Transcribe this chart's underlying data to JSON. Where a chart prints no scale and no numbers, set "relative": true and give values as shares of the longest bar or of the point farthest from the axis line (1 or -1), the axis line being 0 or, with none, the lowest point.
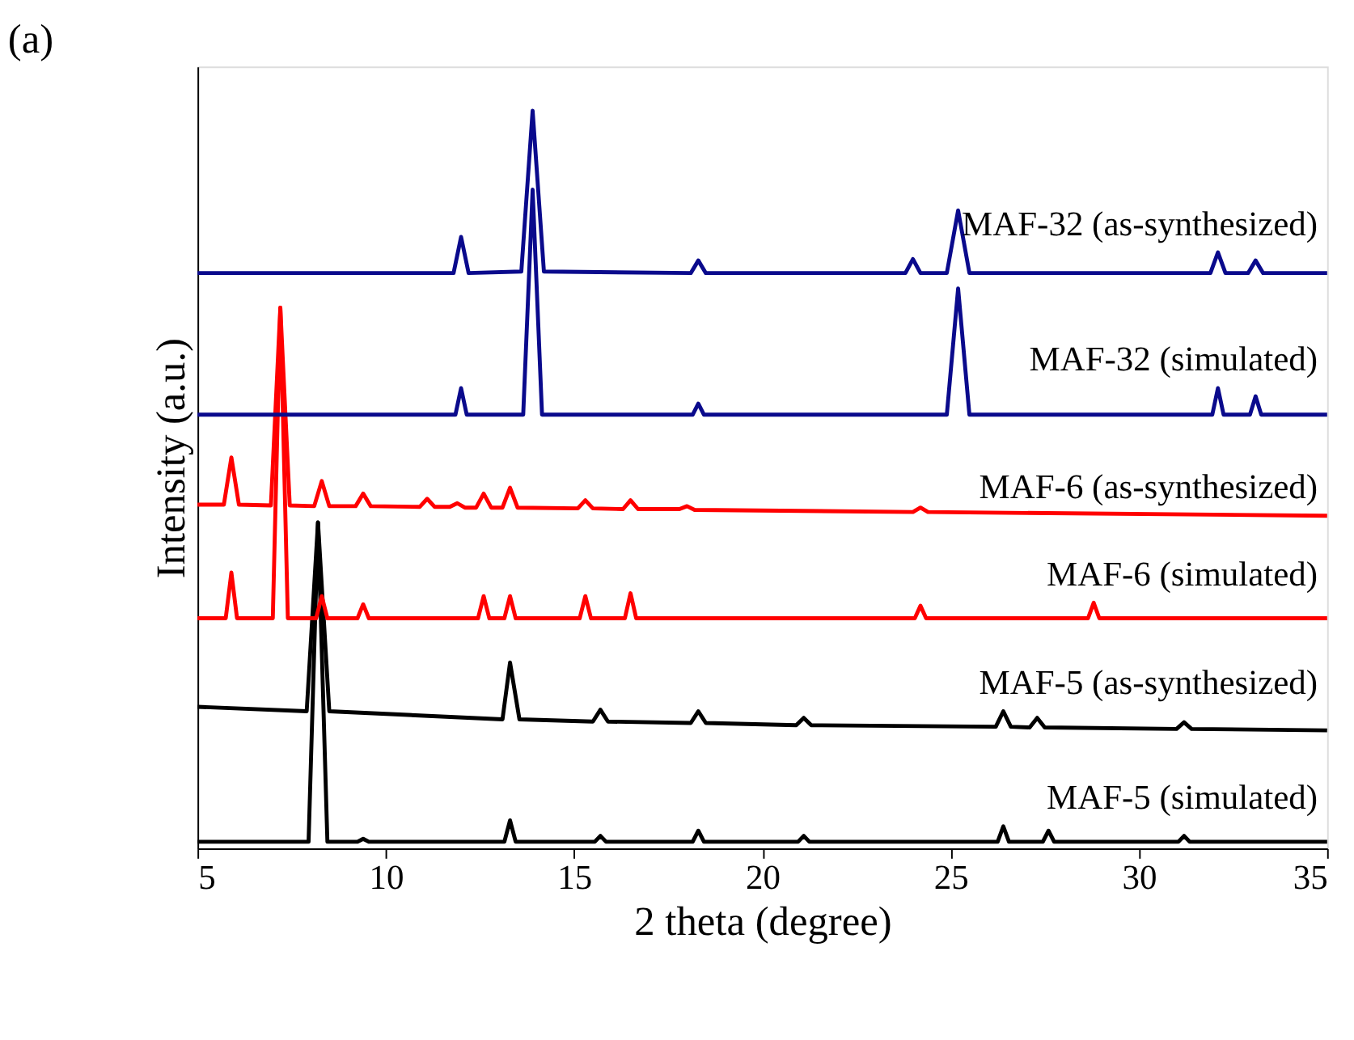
{
  "chart_data": {
    "type": "line",
    "relative": true,
    "xlabel": "2 theta (degree)",
    "ylabel": "Intensity (a.u.)",
    "annotations": [
      "(a)"
    ],
    "xlim": [
      5,
      35
    ],
    "xticks": [
      5,
      10,
      15,
      20,
      25,
      30,
      35
    ],
    "grid": false,
    "marker": "none",
    "line_style": "solid",
    "series": [
      {
        "name": "MAF-5 (simulated)",
        "color": "#000000",
        "x": [
          5,
          7.95,
          8.2,
          8.45,
          9.25,
          9.4,
          9.55,
          13.15,
          13.3,
          13.45,
          15.55,
          15.7,
          15.85,
          18.15,
          18.3,
          18.45,
          20.95,
          21.1,
          21.25,
          26.25,
          26.4,
          26.55,
          27.45,
          27.6,
          27.75,
          31.05,
          31.2,
          31.35,
          35
        ],
        "values": [
          0.009,
          0.009,
          0.442,
          0.009,
          0.009,
          0.013,
          0.009,
          0.009,
          0.038,
          0.009,
          0.009,
          0.017,
          0.009,
          0.009,
          0.024,
          0.009,
          0.009,
          0.017,
          0.009,
          0.009,
          0.03,
          0.009,
          0.009,
          0.024,
          0.009,
          0.009,
          0.017,
          0.009,
          0.009
        ]
      },
      {
        "name": "MAF-5 (as-synthesized)",
        "color": "#000000",
        "x": [
          5,
          7.9,
          8.2,
          8.5,
          13.1,
          13.3,
          13.55,
          15.5,
          15.7,
          15.9,
          18.1,
          18.3,
          18.5,
          20.9,
          21.1,
          21.3,
          26.2,
          26.4,
          26.6,
          27.1,
          27.3,
          27.5,
          31,
          31.2,
          31.4,
          35
        ],
        "values": [
          0.192,
          0.186,
          0.442,
          0.186,
          0.175,
          0.252,
          0.175,
          0.172,
          0.188,
          0.172,
          0.17,
          0.186,
          0.17,
          0.167,
          0.177,
          0.167,
          0.165,
          0.186,
          0.165,
          0.164,
          0.177,
          0.164,
          0.162,
          0.171,
          0.162,
          0.16
        ]
      },
      {
        "name": "MAF-6 (simulated)",
        "color": "#ff0000",
        "x": [
          5,
          5.75,
          5.9,
          6.05,
          7.0,
          7.2,
          7.4,
          8.15,
          8.3,
          8.45,
          9.25,
          9.4,
          9.55,
          12.45,
          12.6,
          12.75,
          13.15,
          13.3,
          13.45,
          15.15,
          15.3,
          15.45,
          16.35,
          16.5,
          16.65,
          24.05,
          24.2,
          24.35,
          28.65,
          28.8,
          28.95,
          35
        ],
        "values": [
          0.312,
          0.312,
          0.374,
          0.312,
          0.312,
          0.733,
          0.312,
          0.312,
          0.342,
          0.312,
          0.312,
          0.331,
          0.312,
          0.312,
          0.342,
          0.312,
          0.312,
          0.342,
          0.312,
          0.312,
          0.342,
          0.312,
          0.312,
          0.346,
          0.312,
          0.312,
          0.329,
          0.312,
          0.312,
          0.333,
          0.312,
          0.312
        ]
      },
      {
        "name": "MAF-6 (as-synthesized)",
        "color": "#ff0000",
        "x": [
          5,
          5.7,
          5.9,
          6.1,
          6.95,
          7.2,
          7.45,
          8.1,
          8.3,
          8.5,
          9.2,
          9.4,
          9.6,
          10.9,
          11.1,
          11.3,
          11.7,
          11.9,
          12.1,
          12.4,
          12.6,
          12.8,
          13.1,
          13.3,
          13.5,
          15.1,
          15.3,
          15.5,
          16.3,
          16.5,
          16.7,
          17.8,
          18.0,
          18.2,
          24,
          24.2,
          24.4,
          35
        ],
        "values": [
          0.466,
          0.466,
          0.53,
          0.466,
          0.465,
          0.733,
          0.465,
          0.464,
          0.498,
          0.464,
          0.464,
          0.481,
          0.464,
          0.463,
          0.474,
          0.463,
          0.463,
          0.468,
          0.462,
          0.462,
          0.481,
          0.462,
          0.462,
          0.489,
          0.462,
          0.461,
          0.472,
          0.461,
          0.46,
          0.472,
          0.46,
          0.46,
          0.464,
          0.459,
          0.456,
          0.462,
          0.456,
          0.451
        ]
      },
      {
        "name": "MAF-32 (simulated)",
        "color": "#0a0a8c",
        "x": [
          5,
          11.85,
          12.0,
          12.15,
          13.65,
          13.9,
          14.15,
          18.15,
          18.3,
          18.45,
          24.9,
          25.2,
          25.5,
          31.95,
          32.1,
          32.25,
          32.95,
          33.1,
          33.25,
          35
        ],
        "values": [
          0.588,
          0.588,
          0.624,
          0.588,
          0.588,
          0.893,
          0.588,
          0.588,
          0.603,
          0.588,
          0.588,
          0.759,
          0.588,
          0.588,
          0.624,
          0.588,
          0.588,
          0.613,
          0.588,
          0.588
        ]
      },
      {
        "name": "MAF-32 (as-synthesized)",
        "color": "#0a0a8c",
        "x": [
          5,
          11.8,
          12.0,
          12.2,
          13.6,
          13.9,
          14.2,
          18.1,
          18.3,
          18.5,
          23.8,
          24.0,
          24.2,
          24.9,
          25.2,
          25.5,
          31.9,
          32.1,
          32.3,
          32.9,
          33.1,
          33.3,
          35
        ],
        "values": [
          0.78,
          0.78,
          0.829,
          0.78,
          0.782,
          1.0,
          0.782,
          0.78,
          0.797,
          0.78,
          0.78,
          0.799,
          0.78,
          0.78,
          0.865,
          0.78,
          0.78,
          0.808,
          0.78,
          0.78,
          0.797,
          0.78,
          0.78
        ]
      }
    ]
  }
}
